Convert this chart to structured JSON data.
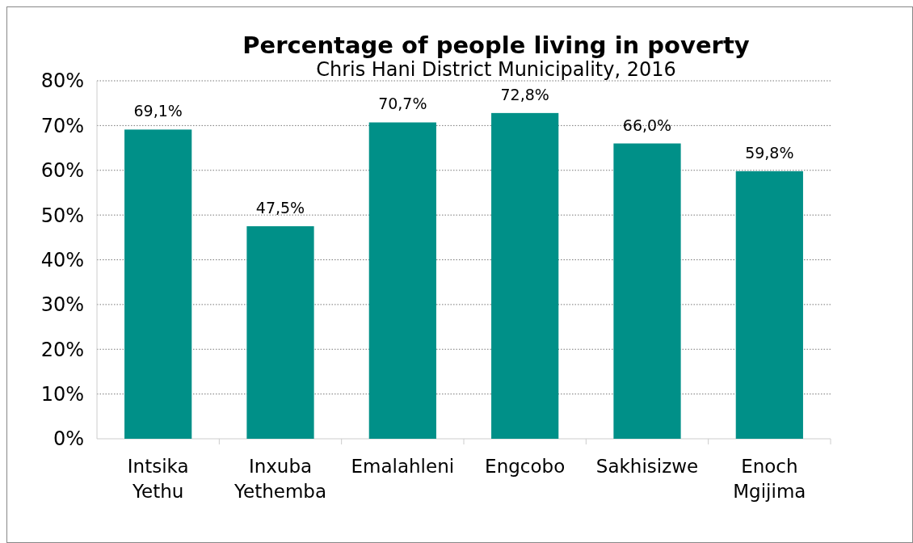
{
  "chart_data": {
    "type": "bar",
    "title": "Percentage of people living in poverty",
    "subtitle": "Chris Hani District Municipality, 2016",
    "categories": [
      "Intsika Yethu",
      "Inxuba Yethemba",
      "Emalahleni",
      "Engcobo",
      "Sakhisizwe",
      "Enoch Mgijima"
    ],
    "values": [
      69.1,
      47.5,
      70.7,
      72.8,
      66.0,
      59.8
    ],
    "value_labels": [
      "69,1%",
      "47,5%",
      "70,7%",
      "72,8%",
      "66,0%",
      "59,8%"
    ],
    "color": "#009088",
    "ylim": [
      0,
      80
    ],
    "yticks": [
      {
        "value": 0,
        "label": "0%"
      },
      {
        "value": 10,
        "label": "10%"
      },
      {
        "value": 20,
        "label": "20%"
      },
      {
        "value": 30,
        "label": "30%"
      },
      {
        "value": 40,
        "label": "40%"
      },
      {
        "value": 50,
        "label": "50%"
      },
      {
        "value": 60,
        "label": "60%"
      },
      {
        "value": 70,
        "label": "70%"
      },
      {
        "value": 80,
        "label": "80%"
      }
    ],
    "grid": "y"
  }
}
